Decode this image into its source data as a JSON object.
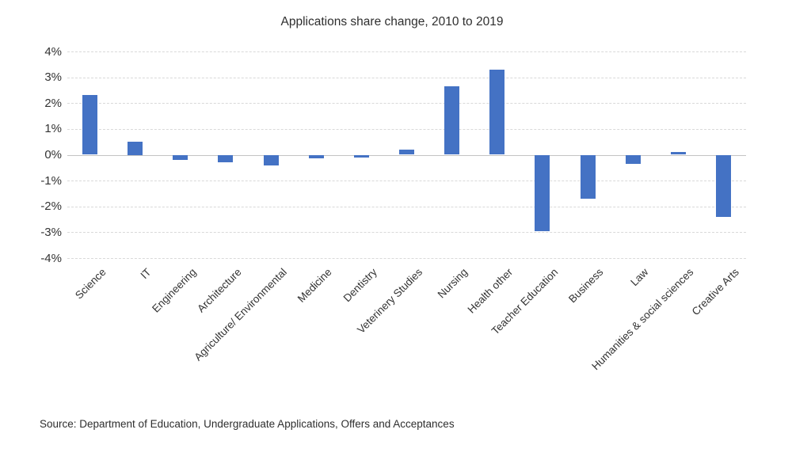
{
  "title": "Applications share change, 2010 to 2019",
  "source_note": "Source: Department of Education, Undergraduate Applications, Offers and Acceptances",
  "colors": {
    "bar": "#4472C4",
    "gridline": "#D9D9D9",
    "text": "#333333"
  },
  "chart_data": {
    "type": "bar",
    "title": "Applications share change, 2010 to 2019",
    "categories": [
      "Science",
      "IT",
      "Engineering",
      "Architecture",
      "Agriculture/ Environmental",
      "Medicine",
      "Dentistry",
      "Veterinery Studies",
      "Nursing",
      "Health other",
      "Teacher Education",
      "Business",
      "Law",
      "Humanities & social sciences",
      "Creative Arts"
    ],
    "values": [
      2.3,
      0.5,
      -0.2,
      -0.3,
      -0.4,
      -0.15,
      -0.1,
      0.2,
      2.65,
      3.3,
      -2.95,
      -1.7,
      -0.35,
      0.1,
      -2.4
    ],
    "value_unit": "%",
    "xlabel": "",
    "ylabel": "",
    "ylim": [
      -4,
      4
    ],
    "ytick_step": 1,
    "ytick_labels": [
      "4%",
      "3%",
      "2%",
      "1%",
      "0%",
      "-1%",
      "-2%",
      "-3%",
      "-4%"
    ],
    "grid": true,
    "legend": false
  }
}
